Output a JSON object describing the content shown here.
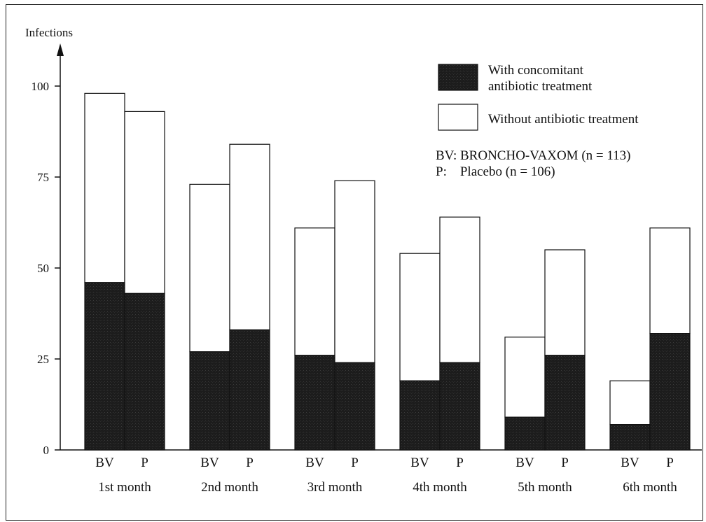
{
  "chart_data": {
    "type": "bar",
    "stacked": true,
    "ylabel": "Infections",
    "ylim": [
      0,
      100
    ],
    "yticks": [
      0,
      25,
      50,
      75,
      100
    ],
    "groups": [
      {
        "label": "1st month",
        "bars": [
          {
            "label": "BV",
            "with": 46,
            "total": 98
          },
          {
            "label": "P",
            "with": 43,
            "total": 93
          }
        ]
      },
      {
        "label": "2nd month",
        "bars": [
          {
            "label": "BV",
            "with": 27,
            "total": 73
          },
          {
            "label": "P",
            "with": 33,
            "total": 84
          }
        ]
      },
      {
        "label": "3rd month",
        "bars": [
          {
            "label": "BV",
            "with": 26,
            "total": 61
          },
          {
            "label": "P",
            "with": 24,
            "total": 74
          }
        ]
      },
      {
        "label": "4th month",
        "bars": [
          {
            "label": "BV",
            "with": 19,
            "total": 54
          },
          {
            "label": "P",
            "with": 24,
            "total": 64
          }
        ]
      },
      {
        "label": "5th month",
        "bars": [
          {
            "label": "BV",
            "with": 9,
            "total": 31
          },
          {
            "label": "P",
            "with": 26,
            "total": 55
          }
        ]
      },
      {
        "label": "6th month",
        "bars": [
          {
            "label": "BV",
            "with": 7,
            "total": 19
          },
          {
            "label": "P",
            "with": 32,
            "total": 61
          }
        ]
      }
    ],
    "legend": {
      "placement": "top-right",
      "items": [
        {
          "line1": "With concomitant",
          "line2": "antibiotic treatment",
          "color": "#1c1c1c"
        },
        {
          "line1": "Without antibiotic treatment",
          "line2": "",
          "color": "#ffffff"
        }
      ]
    },
    "notes": [
      "BV: BRONCHO-VAXOM (n = 113)",
      "P:    Placebo (n = 106)"
    ]
  }
}
